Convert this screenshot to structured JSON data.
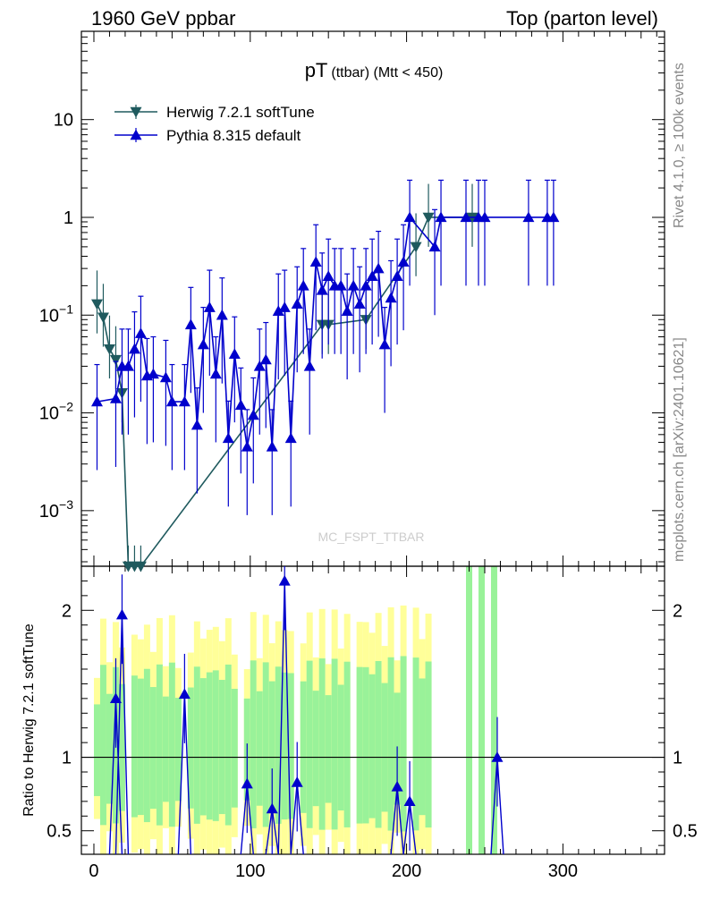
{
  "header": {
    "beam": "1960 GeV ppbar",
    "process": "Top (parton level)"
  },
  "side_labels": {
    "rivet": "Rivet 4.1.0, ≥ 100k events",
    "source": "mcplots.cern.ch [arXiv:2401.10621]"
  },
  "watermark": "MC_FSPT_TTBAR",
  "colors": {
    "herwig": "#1f5a5e",
    "pythia": "#0000cc",
    "band_green": "#99f299",
    "band_yellow": "#ffff99"
  },
  "chart_data": [
    {
      "type": "line",
      "panel": "main",
      "title": "pT",
      "title_sub": "(ttbar) (Mtt < 450)",
      "xlabel": "",
      "ylabel": "",
      "yscale": "log",
      "xlim": [
        -8,
        365
      ],
      "ylim": [
        0.00027,
        80
      ],
      "yticks": [
        {
          "value": 0.001,
          "base": "10",
          "exp": "−3"
        },
        {
          "value": 0.01,
          "base": "10",
          "exp": "−2"
        },
        {
          "value": 0.1,
          "base": "10",
          "exp": "−1"
        },
        {
          "value": 1,
          "label": "1"
        },
        {
          "value": 10,
          "label": "10"
        }
      ],
      "legend": "top-left",
      "series": [
        {
          "name": "Herwig 7.2.1 softTune",
          "marker": "triangle-down",
          "x": [
            2,
            6,
            10,
            14,
            18,
            22,
            26,
            30,
            146,
            150,
            174,
            206,
            214,
            242
          ],
          "y": [
            0.13,
            0.095,
            0.045,
            0.035,
            0.016,
            0.0002,
            0.0002,
            0.0002,
            0.08,
            0.08,
            0.09,
            0.5,
            1.0,
            1.0
          ]
        },
        {
          "name": "Pythia 8.315 default",
          "marker": "triangle-up",
          "x": [
            2,
            14,
            18,
            22,
            26,
            30,
            34,
            38,
            46,
            50,
            58,
            62,
            66,
            70,
            74,
            78,
            82,
            86,
            90,
            94,
            98,
            102,
            106,
            110,
            114,
            118,
            122,
            126,
            130,
            134,
            138,
            142,
            146,
            150,
            154,
            158,
            162,
            166,
            170,
            174,
            178,
            182,
            186,
            190,
            194,
            198,
            202,
            218,
            222,
            238,
            246,
            250,
            278,
            290,
            294
          ],
          "y": [
            0.013,
            0.014,
            0.03,
            0.03,
            0.045,
            0.065,
            0.024,
            0.025,
            0.023,
            0.013,
            0.013,
            0.08,
            0.0075,
            0.05,
            0.12,
            0.025,
            0.1,
            0.0055,
            0.04,
            0.012,
            0.0045,
            0.0095,
            0.03,
            0.035,
            0.0045,
            0.11,
            0.12,
            0.0055,
            0.13,
            0.2,
            0.03,
            0.35,
            0.18,
            0.25,
            0.2,
            0.2,
            0.11,
            0.2,
            0.13,
            0.2,
            0.25,
            0.3,
            0.05,
            0.15,
            0.25,
            0.35,
            1.0,
            0.5,
            1.0,
            1.0,
            1.0,
            1.0,
            1.0,
            1.0,
            1.0
          ]
        }
      ]
    },
    {
      "type": "line",
      "panel": "ratio",
      "xlabel": "",
      "ylabel": "Ratio to Herwig 7.2.1 softTune",
      "xlim": [
        -8,
        365
      ],
      "ylim": [
        0.34,
        2.3
      ],
      "xticks": [
        0,
        100,
        200,
        300
      ],
      "yticks": [
        0.5,
        1,
        2
      ],
      "reference_line": 1,
      "series": [
        {
          "name": "Pythia 8.315 default",
          "marker": "triangle-up",
          "x": [
            14,
            18,
            58,
            98,
            114,
            122,
            130,
            194,
            202,
            258
          ],
          "y": [
            1.4,
            1.97,
            1.43,
            0.82,
            0.65,
            2.2,
            0.83,
            0.8,
            0.7,
            1.0
          ]
        }
      ]
    }
  ]
}
